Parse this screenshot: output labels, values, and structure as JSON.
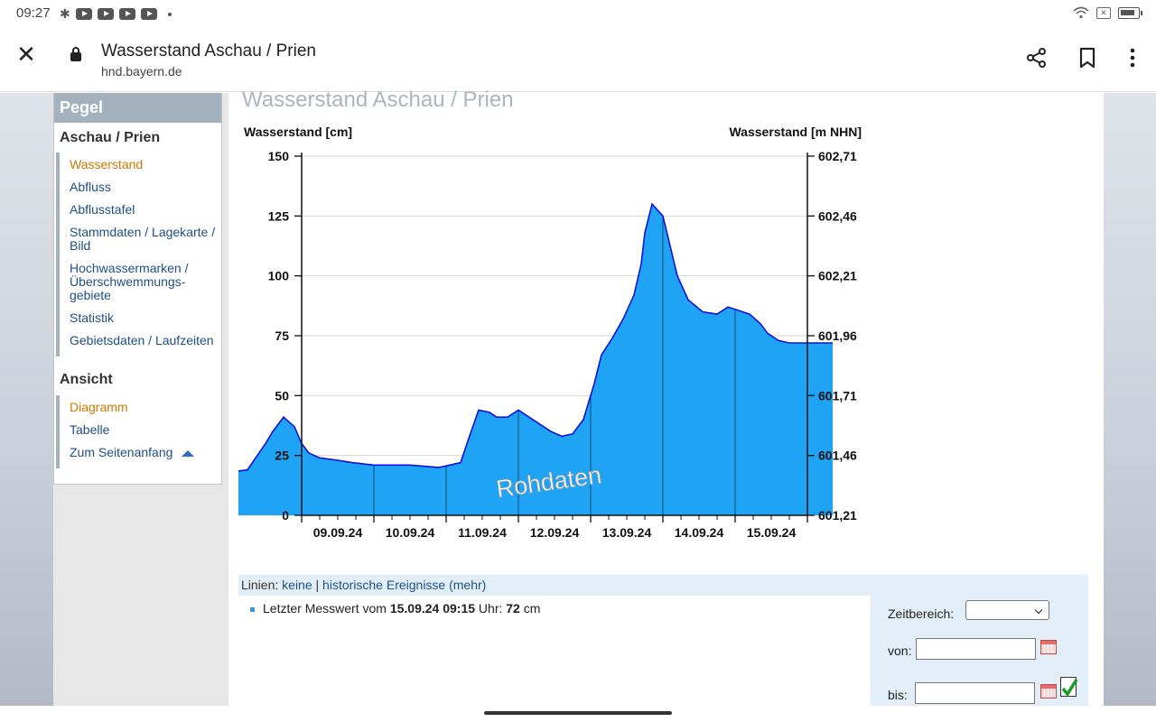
{
  "status_bar": {
    "time": "09:27",
    "notification_icons": [
      "bluetooth-icon",
      "youtube-icon",
      "youtube-icon",
      "youtube-icon",
      "youtube-icon"
    ]
  },
  "browser": {
    "title": "Wasserstand Aschau / Prien",
    "url": "hnd.bayern.de"
  },
  "sidebar": {
    "header": "Pegel",
    "station": "Aschau / Prien",
    "items": [
      {
        "label": "Wasserstand",
        "active": true
      },
      {
        "label": "Abfluss"
      },
      {
        "label": "Abflusstafel"
      },
      {
        "label": "Stammdaten / Lagekarte / Bild"
      },
      {
        "label": "Hochwassermarken / Überschwemmungs-gebiete"
      },
      {
        "label": "Statistik"
      },
      {
        "label": "Gebietsdaten / Laufzeiten"
      }
    ],
    "view_header": "Ansicht",
    "view_items": [
      {
        "label": "Diagramm",
        "active": true
      },
      {
        "label": "Tabelle"
      },
      {
        "label": "Zum Seitenanfang"
      }
    ]
  },
  "main": {
    "title": "Wasserstand Aschau / Prien"
  },
  "chart_data": {
    "type": "area",
    "y_left_label": "Wasserstand [cm]",
    "y_right_label": "Wasserstand [m NHN]",
    "y_left_ticks": [
      0,
      25,
      50,
      75,
      100,
      125,
      150
    ],
    "y_right_ticks": [
      "601,21",
      "601,46",
      "601,71",
      "601,96",
      "602,21",
      "602,46",
      "602,71"
    ],
    "ylim": [
      0,
      150
    ],
    "x_ticks": [
      "09.09.24",
      "10.09.24",
      "11.09.24",
      "12.09.24",
      "13.09.24",
      "14.09.24",
      "15.09.24"
    ],
    "watermark": "Rohdaten",
    "fill_color": "#1fa3f5",
    "line_color": "#1010e0",
    "series": [
      {
        "x": [
          0,
          0.25,
          0.5,
          0.6,
          0.75,
          0.9,
          1.0,
          1.1,
          1.25,
          1.5,
          1.7,
          2.0,
          2.3,
          2.5,
          2.9,
          3.05,
          3.2,
          3.3,
          3.45,
          3.6,
          3.7,
          3.85,
          4.0,
          4.2,
          4.45,
          4.6,
          4.75,
          4.9,
          5.05,
          5.15,
          5.3,
          5.45,
          5.6,
          5.7,
          5.75,
          5.85,
          6.0,
          6.2,
          6.35,
          6.55,
          6.75,
          6.9,
          7.0,
          7.2,
          7.35,
          7.45,
          7.6,
          7.75,
          7.9,
          8.0,
          8.1,
          8.2,
          8.35
        ],
        "values": [
          18,
          19,
          30,
          35,
          41,
          37,
          30,
          26,
          24,
          23,
          22,
          21,
          21,
          21,
          20,
          21,
          22,
          31,
          44,
          43,
          41,
          41,
          44,
          40,
          35,
          33,
          34,
          40,
          55,
          67,
          74,
          82,
          92,
          105,
          118,
          130,
          125,
          100,
          90,
          85,
          84,
          87,
          86,
          84,
          80,
          76,
          73,
          72,
          72,
          72,
          72,
          72,
          72
        ],
        "note_x": "days since 08.09.24 00:00"
      }
    ]
  },
  "lines_bar": {
    "prefix": "Linien: ",
    "link1": "keine",
    "sep": " | ",
    "link2": "historische Ereignisse",
    "link3": "(mehr)"
  },
  "measurement": {
    "prefix": "Letzter Messwert vom ",
    "datetime": "15.09.24 09:15",
    "mid": " Uhr: ",
    "value": "72",
    "unit": " cm"
  },
  "filter": {
    "range_label": "Zeitbereich:",
    "from_label": "von:",
    "to_label": "bis:"
  }
}
